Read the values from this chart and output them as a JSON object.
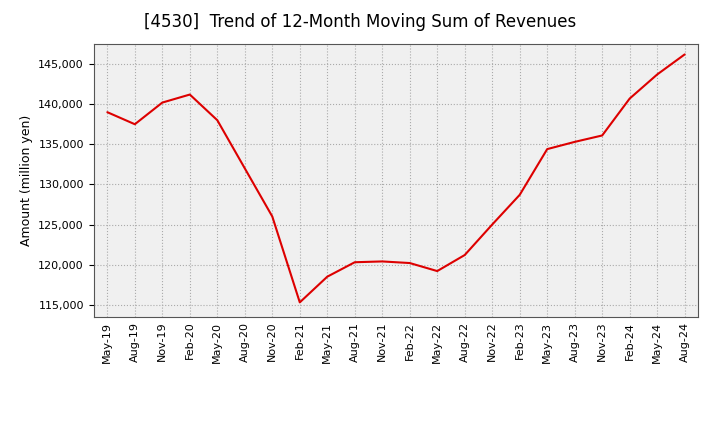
{
  "title": "[4530]  Trend of 12-Month Moving Sum of Revenues",
  "ylabel": "Amount (million yen)",
  "line_color": "#dd0000",
  "plot_bg_color": "#f0f0f0",
  "figure_bg_color": "#ffffff",
  "grid_color": "#aaaaaa",
  "spine_color": "#555555",
  "ylim": [
    113500,
    147500
  ],
  "yticks": [
    115000,
    120000,
    125000,
    130000,
    135000,
    140000,
    145000
  ],
  "x_labels": [
    "May-19",
    "Aug-19",
    "Nov-19",
    "Feb-20",
    "May-20",
    "Aug-20",
    "Nov-20",
    "Feb-21",
    "May-21",
    "Aug-21",
    "Nov-21",
    "Feb-22",
    "May-22",
    "Aug-22",
    "Nov-22",
    "Feb-23",
    "May-23",
    "Aug-23",
    "Nov-23",
    "Feb-24",
    "May-24",
    "Aug-24"
  ],
  "values": [
    139000,
    137500,
    140200,
    141200,
    138000,
    132000,
    126000,
    115300,
    118500,
    120300,
    120400,
    120200,
    119200,
    121200,
    125000,
    128700,
    134400,
    135300,
    136100,
    140700,
    143700,
    146200
  ],
  "title_fontsize": 12,
  "label_fontsize": 9,
  "tick_fontsize": 8
}
